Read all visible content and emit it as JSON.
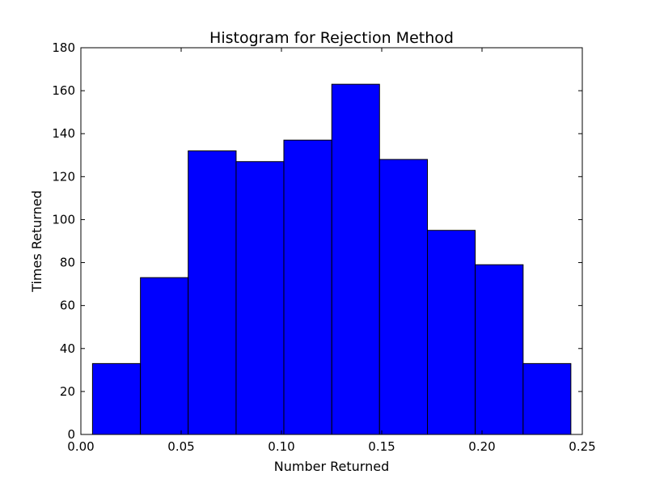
{
  "chart_data": {
    "type": "bar",
    "title": "Histogram for Rejection Method",
    "xlabel": "Number Returned",
    "ylabel": "Times Returned",
    "xlim": [
      0.0,
      0.25
    ],
    "ylim": [
      0,
      180
    ],
    "bin_edges": [
      0.0058,
      0.0297,
      0.0535,
      0.0774,
      0.1012,
      0.1251,
      0.1489,
      0.1728,
      0.1966,
      0.2205,
      0.2443
    ],
    "values": [
      33,
      73,
      132,
      127,
      137,
      163,
      128,
      95,
      79,
      33
    ],
    "x_ticks": [
      "0.00",
      "0.05",
      "0.10",
      "0.15",
      "0.20",
      "0.25"
    ],
    "y_ticks": [
      "0",
      "20",
      "40",
      "60",
      "80",
      "100",
      "120",
      "140",
      "160",
      "180"
    ],
    "bar_color": "#0000ff",
    "edge_color": "#000000",
    "grid": false
  }
}
